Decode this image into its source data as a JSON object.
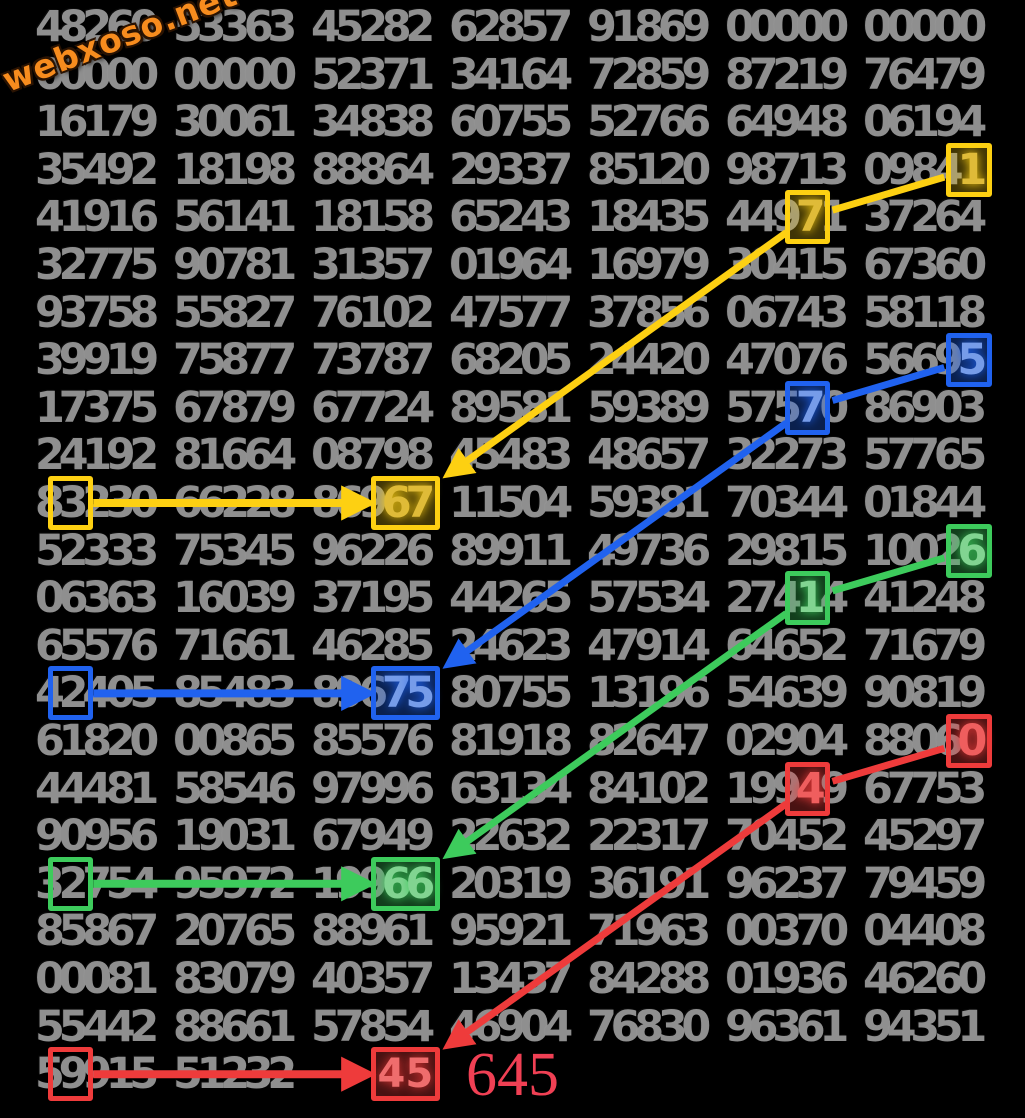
{
  "watermark": {
    "text": "webxoso.net",
    "color": "#f78c1e"
  },
  "result": {
    "text": "645",
    "color": "#f04054"
  },
  "grid": {
    "digit_color": "#8f8f8f",
    "rows": [
      [
        "48260",
        "53363",
        "45282",
        "62857",
        "91869",
        "00000",
        "00000"
      ],
      [
        "00000",
        "00000",
        "52371",
        "34164",
        "72859",
        "87219",
        "76479"
      ],
      [
        "16179",
        "30061",
        "34838",
        "60755",
        "52766",
        "64948",
        "06194"
      ],
      [
        "35492",
        "18198",
        "88864",
        "29337",
        "85120",
        "98713",
        "09841"
      ],
      [
        "41916",
        "56141",
        "18158",
        "65243",
        "18435",
        "44971",
        "37264"
      ],
      [
        "32775",
        "90781",
        "31357",
        "01964",
        "16979",
        "30415",
        "67360"
      ],
      [
        "93758",
        "55827",
        "76102",
        "47577",
        "37856",
        "06743",
        "58118"
      ],
      [
        "39919",
        "75877",
        "73787",
        "68205",
        "24420",
        "47076",
        "56695"
      ],
      [
        "17375",
        "67879",
        "67724",
        "89581",
        "59389",
        "57570",
        "86903"
      ],
      [
        "24192",
        "81664",
        "08798",
        "45483",
        "48657",
        "32273",
        "57765"
      ],
      [
        "83230",
        "66228",
        "86967",
        "11504",
        "59381",
        "70344",
        "01844"
      ],
      [
        "52333",
        "75345",
        "96226",
        "89911",
        "49736",
        "29815",
        "10026"
      ],
      [
        "06363",
        "16039",
        "37195",
        "44265",
        "57534",
        "27414",
        "41248"
      ],
      [
        "65576",
        "71661",
        "46285",
        "24623",
        "47914",
        "64652",
        "71679"
      ],
      [
        "42405",
        "85483",
        "89675",
        "80755",
        "13196",
        "54639",
        "90819"
      ],
      [
        "61820",
        "00865",
        "85576",
        "81918",
        "82647",
        "02904",
        "88060"
      ],
      [
        "44481",
        "58546",
        "97996",
        "63134",
        "84102",
        "19949",
        "67753"
      ],
      [
        "90956",
        "19031",
        "67949",
        "22632",
        "22317",
        "70452",
        "45297"
      ],
      [
        "32754",
        "95972",
        "19966",
        "20319",
        "36191",
        "96237",
        "79459"
      ],
      [
        "85867",
        "20765",
        "88961",
        "95921",
        "71963",
        "00370",
        "04408"
      ],
      [
        "00081",
        "83079",
        "40357",
        "13437",
        "84288",
        "01936",
        "46260"
      ],
      [
        "55442",
        "88661",
        "57854",
        "46904",
        "76830",
        "96361",
        "94351"
      ],
      [
        "59915",
        "51232"
      ]
    ]
  },
  "chains": [
    {
      "name": "yellow",
      "color": "#fdd012",
      "lit": "#d6b544",
      "fill": "rgba(253,208,18,0.25)",
      "boxes": [
        {
          "row": 4,
          "col": 7,
          "d1": 5,
          "d2": 5,
          "style": "fill"
        },
        {
          "row": 5,
          "col": 6,
          "d1": 4,
          "d2": 4,
          "style": "fill"
        },
        {
          "row": 11,
          "col": 3,
          "d1": 4,
          "d2": 5,
          "style": "fill"
        },
        {
          "row": 11,
          "col": 1,
          "d1": 2,
          "d2": 2,
          "style": "outline"
        }
      ],
      "links": [
        {
          "from": 0,
          "to": 1,
          "arrow": false
        },
        {
          "from": 1,
          "to": 2,
          "arrow": true
        },
        {
          "from": 3,
          "to": 2,
          "arrow": true,
          "horizontal": true
        }
      ]
    },
    {
      "name": "blue",
      "color": "#2062ef",
      "lit": "#9fb7e6",
      "fill": "rgba(32,98,239,0.32)",
      "boxes": [
        {
          "row": 8,
          "col": 7,
          "d1": 5,
          "d2": 5,
          "style": "fill"
        },
        {
          "row": 9,
          "col": 6,
          "d1": 4,
          "d2": 4,
          "style": "fill"
        },
        {
          "row": 15,
          "col": 3,
          "d1": 4,
          "d2": 5,
          "style": "fill"
        },
        {
          "row": 15,
          "col": 1,
          "d1": 2,
          "d2": 2,
          "style": "outline"
        }
      ],
      "links": [
        {
          "from": 0,
          "to": 1,
          "arrow": false
        },
        {
          "from": 1,
          "to": 2,
          "arrow": true
        },
        {
          "from": 3,
          "to": 2,
          "arrow": true,
          "horizontal": true
        }
      ]
    },
    {
      "name": "green",
      "color": "#3dcb5c",
      "lit": "#9fd8a8",
      "fill": "rgba(61,203,92,0.30)",
      "boxes": [
        {
          "row": 12,
          "col": 7,
          "d1": 5,
          "d2": 5,
          "style": "fill"
        },
        {
          "row": 13,
          "col": 6,
          "d1": 4,
          "d2": 4,
          "style": "fill"
        },
        {
          "row": 19,
          "col": 3,
          "d1": 4,
          "d2": 5,
          "style": "fill"
        },
        {
          "row": 19,
          "col": 1,
          "d1": 2,
          "d2": 2,
          "style": "outline"
        }
      ],
      "links": [
        {
          "from": 0,
          "to": 1,
          "arrow": false
        },
        {
          "from": 1,
          "to": 2,
          "arrow": true
        },
        {
          "from": 3,
          "to": 2,
          "arrow": true,
          "horizontal": true
        }
      ]
    },
    {
      "name": "red",
      "color": "#ee3b3b",
      "lit": "#ef6d6d",
      "fill": "rgba(238,59,59,0.30)",
      "boxes": [
        {
          "row": 16,
          "col": 7,
          "d1": 5,
          "d2": 5,
          "style": "fill"
        },
        {
          "row": 17,
          "col": 6,
          "d1": 4,
          "d2": 4,
          "style": "fill"
        },
        {
          "row": 23,
          "col": 3,
          "d1": 4,
          "d2": 5,
          "style": "fill",
          "standalone": true,
          "label": "45"
        },
        {
          "row": 23,
          "col": 1,
          "d1": 2,
          "d2": 2,
          "style": "outline"
        }
      ],
      "links": [
        {
          "from": 0,
          "to": 1,
          "arrow": false
        },
        {
          "from": 1,
          "to": 2,
          "arrow": true
        },
        {
          "from": 3,
          "to": 2,
          "arrow": true,
          "horizontal": true
        }
      ]
    }
  ]
}
